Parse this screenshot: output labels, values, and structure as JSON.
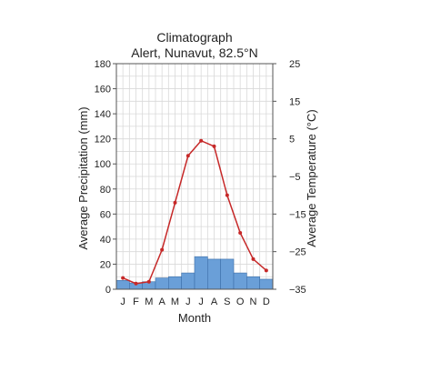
{
  "chart_data": {
    "type": "bar",
    "title": "Climatograph",
    "subtitle": "Alert, Nunavut, 82.5°N",
    "xlabel": "Month",
    "ylabel_left": "Average Precipitation (mm)",
    "ylabel_right": "Average Temperature (°C)",
    "categories": [
      "J",
      "F",
      "M",
      "A",
      "M",
      "J",
      "J",
      "A",
      "S",
      "O",
      "N",
      "D"
    ],
    "ylim_left": [
      0,
      180
    ],
    "yticks_left": [
      0,
      20,
      40,
      60,
      80,
      100,
      120,
      140,
      160,
      180
    ],
    "ylim_right": [
      -35,
      25
    ],
    "yticks_right": [
      -35,
      -25,
      -15,
      -5,
      5,
      15,
      25
    ],
    "grid": "on",
    "series": [
      {
        "name": "Average Precipitation (mm)",
        "type": "bar",
        "axis": "left",
        "color": "#6a9fd8",
        "values": [
          7,
          5,
          6,
          9,
          10,
          13,
          26,
          24,
          24,
          13,
          10,
          8
        ]
      },
      {
        "name": "Average Temperature (°C)",
        "type": "line",
        "axis": "right",
        "color": "#c62828",
        "values": [
          -32,
          -33.5,
          -33,
          -24.5,
          -12,
          0.5,
          4.5,
          3,
          -10,
          -20,
          -27,
          -30
        ]
      }
    ]
  }
}
